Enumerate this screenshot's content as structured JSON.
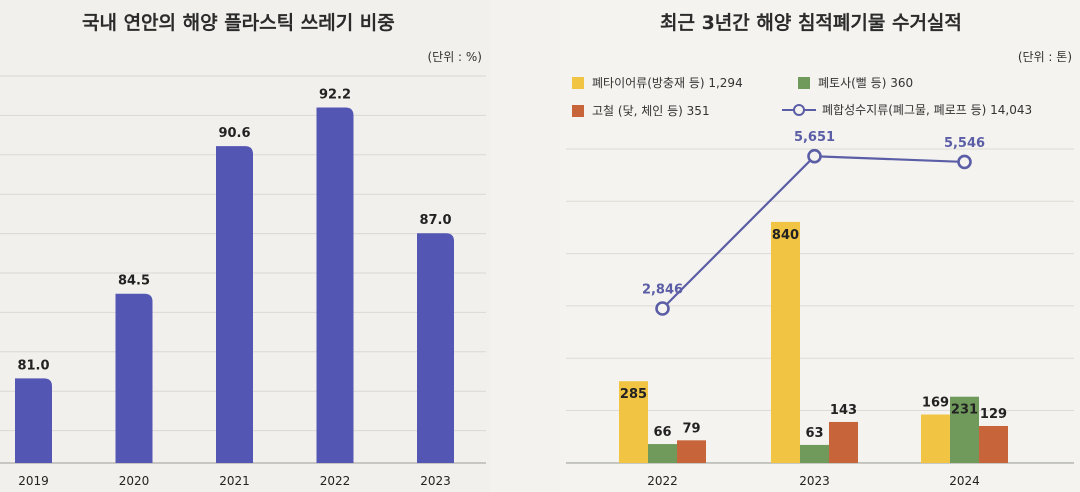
{
  "chart_data": [
    {
      "type": "bar",
      "title": "국내 연안의 해양 플라스틱 쓰레기 비중",
      "unit": "(단위 : %)",
      "categories": [
        "2019",
        "2020",
        "2021",
        "2022",
        "2023"
      ],
      "values": [
        81.0,
        84.5,
        90.6,
        92.2,
        87.0
      ],
      "value_labels": [
        "81.0",
        "84.5",
        "90.6",
        "92.2",
        "87.0"
      ],
      "ylim": [
        77.5,
        93.5
      ],
      "grid": true,
      "colors": {
        "bar": "#5456b3"
      }
    },
    {
      "type": "bar",
      "title": "최근 3년간 해양 침적폐기물 수거실적",
      "unit": "(단위 : 톤)",
      "categories": [
        "2022",
        "2023",
        "2024"
      ],
      "ylim": [
        0,
        1000
      ],
      "grid": true,
      "legend_position": "top",
      "series": [
        {
          "name": "폐타이어류(방충재 등) 1,294",
          "type": "bar",
          "color": "#f2c443",
          "values": [
            285,
            840,
            169
          ],
          "value_labels": [
            "285",
            "840",
            "169"
          ]
        },
        {
          "name": "폐토사(뻘 등) 360",
          "type": "bar",
          "color": "#6f9a5c",
          "values": [
            66,
            63,
            231
          ],
          "value_labels": [
            "66",
            "63",
            "231"
          ]
        },
        {
          "name": "고철 (닻, 체인 등) 351",
          "type": "bar",
          "color": "#c8643a",
          "values": [
            79,
            143,
            129
          ],
          "value_labels": [
            "79",
            "143",
            "129"
          ]
        },
        {
          "name": "폐합성수지류(폐그물, 폐로프 등) 14,043",
          "type": "line",
          "color": "#5b5ea6",
          "values": [
            2846,
            5651,
            5546
          ],
          "value_labels": [
            "2,846",
            "5,651",
            "5,546"
          ],
          "ylim": [
            0,
            7000
          ]
        }
      ]
    }
  ]
}
